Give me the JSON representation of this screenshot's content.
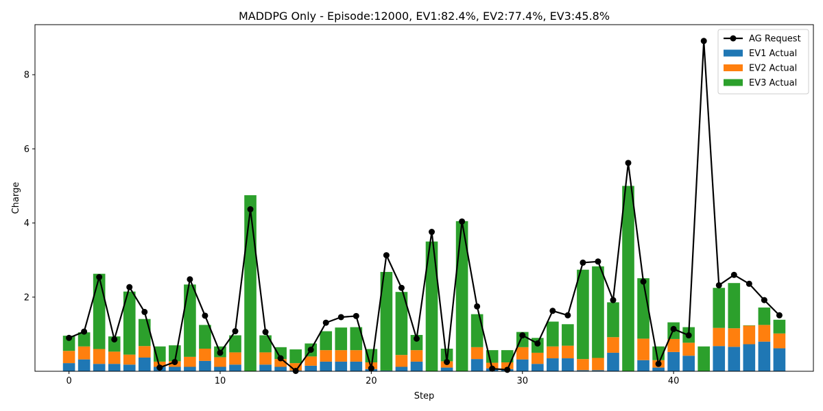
{
  "chart_data": {
    "type": "bar",
    "title": "MADDPG Only - Episode:12000, EV1:82.4%, EV2:77.4%, EV3:45.8%",
    "xlabel": "Step",
    "ylabel": "Charge",
    "xlim": [
      -2.25,
      49.25
    ],
    "ylim": [
      0,
      9.35
    ],
    "xticks": [
      0,
      10,
      20,
      30,
      40
    ],
    "yticks": [
      2,
      4,
      6,
      8
    ],
    "legend_position": "top-right",
    "grid": false,
    "steps": [
      0,
      1,
      2,
      3,
      4,
      5,
      6,
      7,
      8,
      9,
      10,
      11,
      12,
      13,
      14,
      15,
      16,
      17,
      18,
      19,
      20,
      21,
      22,
      23,
      24,
      25,
      26,
      27,
      28,
      29,
      30,
      31,
      32,
      33,
      34,
      35,
      36,
      37,
      38,
      39,
      40,
      41,
      42,
      43,
      44,
      45,
      46,
      47
    ],
    "series": [
      {
        "name": "EV1 Actual",
        "kind": "stacked-bar",
        "color": "#1f77b4",
        "values": [
          0.22,
          0.32,
          0.2,
          0.2,
          0.18,
          0.37,
          0.12,
          0.12,
          0.12,
          0.28,
          0.12,
          0.18,
          0,
          0.18,
          0.12,
          0.02,
          0.15,
          0.26,
          0.26,
          0.26,
          0.06,
          0.02,
          0.12,
          0.26,
          0,
          0.1,
          0,
          0.33,
          0.08,
          0.06,
          0.32,
          0.2,
          0.35,
          0.35,
          0.03,
          0.03,
          0.5,
          0,
          0.3,
          0.1,
          0.52,
          0.42,
          0,
          0.68,
          0.66,
          0.73,
          0.8,
          0.62
        ]
      },
      {
        "name": "EV2 Actual",
        "kind": "stacked-bar",
        "color": "#ff7f0e",
        "values": [
          0.33,
          0.35,
          0.4,
          0.33,
          0.27,
          0.31,
          0.14,
          0.15,
          0.27,
          0.33,
          0.26,
          0.33,
          0,
          0.33,
          0.21,
          0.2,
          0.25,
          0.31,
          0.31,
          0.31,
          0.18,
          0,
          0.32,
          0.31,
          0,
          0.17,
          0,
          0.32,
          0.15,
          0.18,
          0.33,
          0.3,
          0.32,
          0.34,
          0.3,
          0.33,
          0.42,
          0,
          0.58,
          0.2,
          0.35,
          0.35,
          0,
          0.49,
          0.5,
          0.5,
          0.45,
          0.4
        ]
      },
      {
        "name": "EV3 Actual",
        "kind": "stacked-bar",
        "color": "#2ca02c",
        "values": [
          0.41,
          0.38,
          2.03,
          0.41,
          1.7,
          0.73,
          0.41,
          0.43,
          1.95,
          0.64,
          0.29,
          0.46,
          4.75,
          0.46,
          0.32,
          0.37,
          0.35,
          0.51,
          0.61,
          0.62,
          0.36,
          2.66,
          1.7,
          0.41,
          3.5,
          0.34,
          4.05,
          0.89,
          0.34,
          0.33,
          0.41,
          0.4,
          0.67,
          0.58,
          2.41,
          2.47,
          0.94,
          5.0,
          1.63,
          0.37,
          0.45,
          0.42,
          0.67,
          1.08,
          1.22,
          0.01,
          0.47,
          0.37
        ]
      },
      {
        "name": "AG Request",
        "kind": "line",
        "color": "#000000",
        "values": [
          0.9,
          1.07,
          2.54,
          0.86,
          2.27,
          1.6,
          0.1,
          0.25,
          2.48,
          1.5,
          0.5,
          1.08,
          4.37,
          1.06,
          0.35,
          0.01,
          0.58,
          1.31,
          1.46,
          1.49,
          0.08,
          3.13,
          2.25,
          0.88,
          3.76,
          0.25,
          4.04,
          1.75,
          0.07,
          0.04,
          0.97,
          0.75,
          1.63,
          1.51,
          2.93,
          2.96,
          1.92,
          5.62,
          2.42,
          0.2,
          1.14,
          0.97,
          8.91,
          2.32,
          2.6,
          2.36,
          1.92,
          1.51
        ]
      }
    ]
  }
}
